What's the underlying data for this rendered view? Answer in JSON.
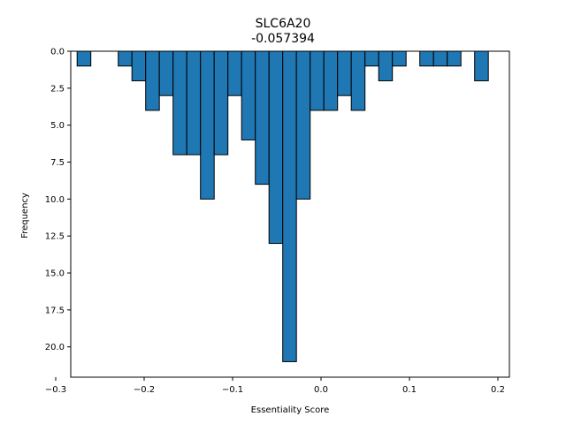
{
  "chart_data": {
    "type": "bar",
    "title": "SLC6A20",
    "subtitle": "-0.057394",
    "xlabel": "Essentiality Score",
    "ylabel": "Frequency",
    "y_inverted": true,
    "xlim": [
      -0.283,
      0.213
    ],
    "ylim": [
      0,
      22.05
    ],
    "bin_width": 0.0155,
    "x_ticks": [
      -0.3,
      -0.2,
      -0.1,
      0.0,
      0.1,
      0.2
    ],
    "x_tick_labels": [
      "−0.3",
      "−0.2",
      "−0.1",
      "0.0",
      "0.1",
      "0.2"
    ],
    "y_ticks": [
      0,
      2.5,
      5,
      7.5,
      10,
      12.5,
      15,
      17.5,
      20
    ],
    "y_tick_labels": [
      "0.0",
      "2.5",
      "5.0",
      "7.5",
      "10.0",
      "12.5",
      "15.0",
      "17.5",
      "20.0"
    ],
    "bin_starts": [
      -0.2758,
      -0.2603,
      -0.2448,
      -0.2293,
      -0.2138,
      -0.1983,
      -0.1828,
      -0.1673,
      -0.1518,
      -0.1363,
      -0.1208,
      -0.1053,
      -0.0898,
      -0.0743,
      -0.0588,
      -0.0433,
      -0.0278,
      -0.0123,
      0.0032,
      0.0187,
      0.0342,
      0.0497,
      0.0652,
      0.0807,
      0.0962,
      0.1117,
      0.1272,
      0.1427,
      0.1582,
      0.1737
    ],
    "values": [
      1,
      0,
      0,
      1,
      2,
      4,
      3,
      7,
      7,
      10,
      7,
      3,
      6,
      9,
      13,
      21,
      10,
      4,
      4,
      3,
      4,
      1,
      2,
      1,
      0,
      1,
      1,
      1,
      0,
      2
    ],
    "colors": {
      "bar_fill": "#1f77b4",
      "bar_edge": "#000000",
      "axis": "#000000"
    },
    "grid": false,
    "legend": "none"
  }
}
